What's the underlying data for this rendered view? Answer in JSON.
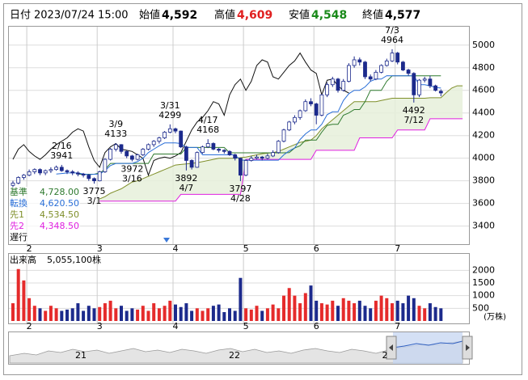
{
  "header": {
    "date_label": "日付",
    "date": "2023/07/24 15:00",
    "fields": [
      {
        "label": "始値",
        "value": "4,592"
      },
      {
        "label": "高値",
        "value": "4,609"
      },
      {
        "label": "安値",
        "value": "4,548"
      },
      {
        "label": "終値",
        "value": "4,577"
      }
    ]
  },
  "chart_data": {
    "type": "candlestick",
    "categories": [
      null,
      null,
      null,
      "2",
      null,
      null,
      null,
      null,
      null,
      null,
      null,
      null,
      null,
      null,
      null,
      null,
      "3",
      null,
      null,
      null,
      null,
      null,
      null,
      null,
      null,
      null,
      null,
      null,
      null,
      null,
      "4",
      null,
      null,
      null,
      null,
      null,
      null,
      null,
      null,
      null,
      null,
      null,
      null,
      "5",
      null,
      null,
      null,
      null,
      null,
      null,
      null,
      null,
      null,
      null,
      null,
      null,
      "6",
      null,
      null,
      null,
      null,
      null,
      null,
      null,
      null,
      null,
      null,
      null,
      null,
      null,
      null,
      "7",
      null,
      null,
      null,
      null,
      null,
      null,
      null,
      null,
      null,
      null,
      null,
      null
    ],
    "ylim": [
      3240,
      5170
    ],
    "yticks": [
      3400,
      3600,
      3800,
      4000,
      4200,
      4400,
      4600,
      4800,
      5000
    ],
    "grid": true,
    "open": [
      3760,
      3780,
      3830,
      3850,
      3880,
      3900,
      3870,
      3890,
      3900,
      3920,
      3890,
      3880,
      3870,
      3860,
      3850,
      3820,
      3800,
      3880,
      3990,
      4080,
      4120,
      4060,
      4020,
      3990,
      4030,
      4080,
      4120,
      4150,
      4180,
      4230,
      4260,
      4240,
      4100,
      3980,
      3920,
      4050,
      4100,
      4130,
      4080,
      4070,
      4060,
      4030,
      4000,
      3850,
      3980,
      4000,
      4010,
      4000,
      4020,
      4050,
      4150,
      4250,
      4320,
      4360,
      4420,
      4500,
      4480,
      4380,
      4560,
      4650,
      4700,
      4600,
      4680,
      4820,
      4870,
      4850,
      4720,
      4700,
      4760,
      4820,
      4860,
      4930,
      4850,
      4780,
      4750,
      4560,
      4690,
      4700,
      4640,
      4592,
      null,
      null,
      null,
      null
    ],
    "high": [
      3800,
      3840,
      3860,
      3900,
      3910,
      3910,
      3900,
      3920,
      3935,
      3941,
      3900,
      3895,
      3885,
      3870,
      3860,
      3830,
      3890,
      4000,
      4090,
      4133,
      4125,
      4070,
      4030,
      4040,
      4090,
      4130,
      4160,
      4190,
      4240,
      4299,
      4270,
      4245,
      4110,
      3990,
      4060,
      4110,
      4168,
      4140,
      4090,
      4080,
      4070,
      4040,
      4005,
      3990,
      4020,
      4030,
      4020,
      4040,
      4070,
      4160,
      4260,
      4330,
      4380,
      4430,
      4520,
      4530,
      4490,
      4570,
      4670,
      4720,
      4710,
      4700,
      4840,
      4900,
      4890,
      4860,
      4740,
      4780,
      4830,
      4880,
      4964,
      4940,
      4860,
      4790,
      4760,
      4700,
      4720,
      4730,
      4650,
      4609,
      null,
      null,
      null,
      null
    ],
    "low": [
      3740,
      3770,
      3810,
      3840,
      3860,
      3850,
      3850,
      3870,
      3890,
      3880,
      3860,
      3850,
      3840,
      3830,
      3800,
      3775,
      3795,
      3870,
      3980,
      4060,
      4040,
      4000,
      3972,
      3980,
      4020,
      4070,
      4100,
      4130,
      4170,
      4220,
      4220,
      4090,
      3892,
      3900,
      3915,
      4040,
      4090,
      4070,
      4050,
      4040,
      4020,
      3980,
      3797,
      3840,
      3970,
      3990,
      3980,
      3990,
      4010,
      4040,
      4140,
      4240,
      4300,
      4340,
      4410,
      4460,
      4300,
      4370,
      4540,
      4630,
      4580,
      4590,
      4670,
      4800,
      4820,
      4700,
      4680,
      4690,
      4750,
      4810,
      4850,
      4830,
      4770,
      4730,
      4492,
      4540,
      4670,
      4620,
      4590,
      4548,
      null,
      null,
      null,
      null
    ],
    "close": [
      3780,
      3830,
      3850,
      3880,
      3900,
      3870,
      3890,
      3900,
      3920,
      3890,
      3880,
      3870,
      3860,
      3850,
      3820,
      3800,
      3880,
      3990,
      4080,
      4120,
      4060,
      4020,
      3990,
      4030,
      4080,
      4120,
      4150,
      4180,
      4230,
      4260,
      4240,
      4100,
      3980,
      3920,
      4050,
      4100,
      4130,
      4080,
      4070,
      4060,
      4030,
      4000,
      3850,
      3980,
      4000,
      4010,
      4000,
      4020,
      4050,
      4150,
      4250,
      4320,
      4360,
      4420,
      4500,
      4480,
      4380,
      4560,
      4650,
      4700,
      4600,
      4680,
      4820,
      4870,
      4850,
      4720,
      4700,
      4760,
      4820,
      4860,
      4930,
      4850,
      4780,
      4750,
      4560,
      4690,
      4700,
      4640,
      4600,
      4577,
      null,
      null,
      null,
      null
    ],
    "series": [
      {
        "name": "基準",
        "color": "#2f7a2f",
        "legend_label": "4,728.00",
        "values": [
          null,
          null,
          null,
          null,
          null,
          null,
          null,
          null,
          null,
          null,
          null,
          null,
          3858,
          3858,
          3858,
          3858,
          3870,
          3900,
          3954,
          3954,
          3954,
          3954,
          3954,
          3954,
          3954,
          3954,
          4037,
          4037,
          4037,
          4037,
          4037,
          4037,
          4095,
          4095,
          4095,
          4095,
          4095,
          4095,
          4095,
          4095,
          4048,
          4048,
          4048,
          4048,
          4048,
          4048,
          4048,
          4048,
          4048,
          4048,
          4048,
          4050,
          4090,
          4110,
          4160,
          4160,
          4160,
          4230,
          4290,
          4300,
          4300,
          4380,
          4400,
          4430,
          4430,
          4500,
          4600,
          4600,
          4600,
          4680,
          4728,
          4728,
          4728,
          4728,
          4728,
          4728,
          4728,
          4728,
          4728,
          4728,
          null,
          null,
          null,
          null
        ]
      },
      {
        "name": "転換",
        "color": "#2a6fd8",
        "legend_label": "4,620.50",
        "values": [
          null,
          null,
          null,
          null,
          null,
          null,
          null,
          null,
          3860,
          3865,
          3870,
          3870,
          3870,
          3860,
          3855,
          3858,
          3860,
          3890,
          3935,
          3954,
          3954,
          3954,
          3954,
          3970,
          4000,
          4050,
          4080,
          4110,
          4135,
          4135,
          4135,
          4130,
          4095,
          4095,
          4095,
          4030,
          4030,
          4030,
          4030,
          4030,
          4030,
          4030,
          3983,
          3983,
          3983,
          3983,
          3983,
          3983,
          3983,
          3983,
          4030,
          4065,
          4090,
          4165,
          4215,
          4250,
          4250,
          4300,
          4385,
          4410,
          4410,
          4510,
          4570,
          4600,
          4600,
          4630,
          4680,
          4700,
          4700,
          4730,
          4728,
          4728,
          4728,
          4728,
          4728,
          4650,
          4650,
          4640,
          4625,
          4620.5,
          null,
          null,
          null,
          null
        ]
      },
      {
        "name": "先1",
        "color": "#7f8f2a",
        "legend_label": "4,534.50",
        "values": [
          null,
          null,
          null,
          null,
          null,
          null,
          null,
          null,
          null,
          null,
          null,
          null,
          null,
          null,
          null,
          null,
          3640,
          3660,
          3690,
          3710,
          3730,
          3760,
          3790,
          3800,
          3820,
          3840,
          3860,
          3880,
          3900,
          3920,
          3940,
          3945,
          3950,
          3955,
          3960,
          3970,
          3980,
          3990,
          4000,
          4000,
          4000,
          4000,
          4005,
          4010,
          4020,
          4030,
          4040,
          4045,
          4050,
          4060,
          4080,
          4100,
          4120,
          4140,
          4150,
          4160,
          4200,
          4260,
          4300,
          4340,
          4380,
          4420,
          4460,
          4500,
          4500,
          4500,
          4500,
          4500,
          4510,
          4520,
          4530,
          4530,
          4530,
          4530,
          4530,
          4530,
          4530,
          4534.5,
          4534.5,
          4534.5,
          4580,
          4620,
          4640,
          4640
        ]
      },
      {
        "name": "先2",
        "color": "#e020e0",
        "legend_label": "4,348.50",
        "values": [
          null,
          null,
          null,
          null,
          null,
          null,
          null,
          null,
          null,
          null,
          null,
          null,
          null,
          null,
          null,
          null,
          3620,
          3620,
          3620,
          3620,
          3620,
          3620,
          3620,
          3620,
          3620,
          3620,
          3620,
          3620,
          3620,
          3620,
          3620,
          3680,
          3680,
          3680,
          3680,
          3680,
          3680,
          3680,
          3680,
          3680,
          3680,
          3680,
          3680,
          3990,
          3990,
          3990,
          3990,
          3990,
          3990,
          3990,
          3990,
          3990,
          3990,
          3990,
          3990,
          3990,
          4070,
          4070,
          4070,
          4070,
          4070,
          4070,
          4070,
          4070,
          4180,
          4180,
          4180,
          4180,
          4180,
          4180,
          4180,
          4250,
          4250,
          4250,
          4250,
          4250,
          4250,
          4348.5,
          4348.5,
          4348.5,
          4348.5,
          4348.5,
          4348.5,
          4348.5
        ]
      },
      {
        "name": "遅行",
        "color": "#111111",
        "values": [
          3990,
          4080,
          4120,
          4060,
          4020,
          3990,
          4030,
          4080,
          4120,
          4150,
          4180,
          4230,
          4260,
          4240,
          4100,
          3980,
          3920,
          4050,
          4100,
          4130,
          4080,
          4070,
          4060,
          4030,
          4000,
          3850,
          3980,
          4000,
          4010,
          4000,
          4020,
          4050,
          4150,
          4250,
          4320,
          4360,
          4420,
          4500,
          4480,
          4380,
          4560,
          4650,
          4700,
          4600,
          4680,
          4820,
          4870,
          4850,
          4720,
          4700,
          4760,
          4820,
          4860,
          4930,
          4850,
          4780,
          4750,
          4560,
          4690,
          4700,
          4640,
          4600,
          4577,
          null,
          null,
          null,
          null,
          null,
          null,
          null,
          null,
          null,
          null,
          null,
          null,
          null,
          null,
          null,
          null,
          null,
          null,
          null,
          null,
          null
        ]
      }
    ],
    "annotations": [
      {
        "kind": "high",
        "date": "2/16",
        "value": 3941
      },
      {
        "kind": "low",
        "date": "3/1",
        "value": 3775
      },
      {
        "kind": "high",
        "date": "3/9",
        "value": 4133
      },
      {
        "kind": "low",
        "date": "3/16",
        "value": 3972
      },
      {
        "kind": "high",
        "date": "3/31",
        "value": 4299
      },
      {
        "kind": "low",
        "date": "4/7",
        "value": 3892
      },
      {
        "kind": "high",
        "date": "4/17",
        "value": 4168
      },
      {
        "kind": "low",
        "date": "4/28",
        "value": 3797
      },
      {
        "kind": "high",
        "date": "7/3",
        "value": 4964
      },
      {
        "kind": "low",
        "date": "7/12",
        "value": 4492
      }
    ],
    "volume": {
      "title": "出来高",
      "total": "5,055,100株",
      "unit": "(万株)",
      "ylim": [
        0,
        2680
      ],
      "yticks": [
        500,
        1000,
        1500,
        2000
      ],
      "values": [
        700,
        2050,
        1600,
        900,
        600,
        500,
        400,
        600,
        500,
        400,
        450,
        500,
        700,
        400,
        600,
        500,
        550,
        700,
        800,
        500,
        600,
        400,
        500,
        450,
        600,
        400,
        700,
        500,
        600,
        800,
        650,
        550,
        700,
        400,
        500,
        400,
        500,
        600,
        650,
        350,
        500,
        400,
        1700,
        500,
        450,
        600,
        400,
        500,
        650,
        500,
        1000,
        1300,
        1000,
        700,
        1100,
        1400,
        800,
        700,
        650,
        800,
        600,
        900,
        800,
        700,
        800,
        600,
        500,
        800,
        1000,
        900,
        700,
        800,
        700,
        1000,
        900,
        600,
        500,
        700,
        550,
        500,
        null,
        null,
        null,
        null
      ]
    }
  },
  "navigator": {
    "labels": [
      "21",
      "22",
      "2"
    ]
  }
}
